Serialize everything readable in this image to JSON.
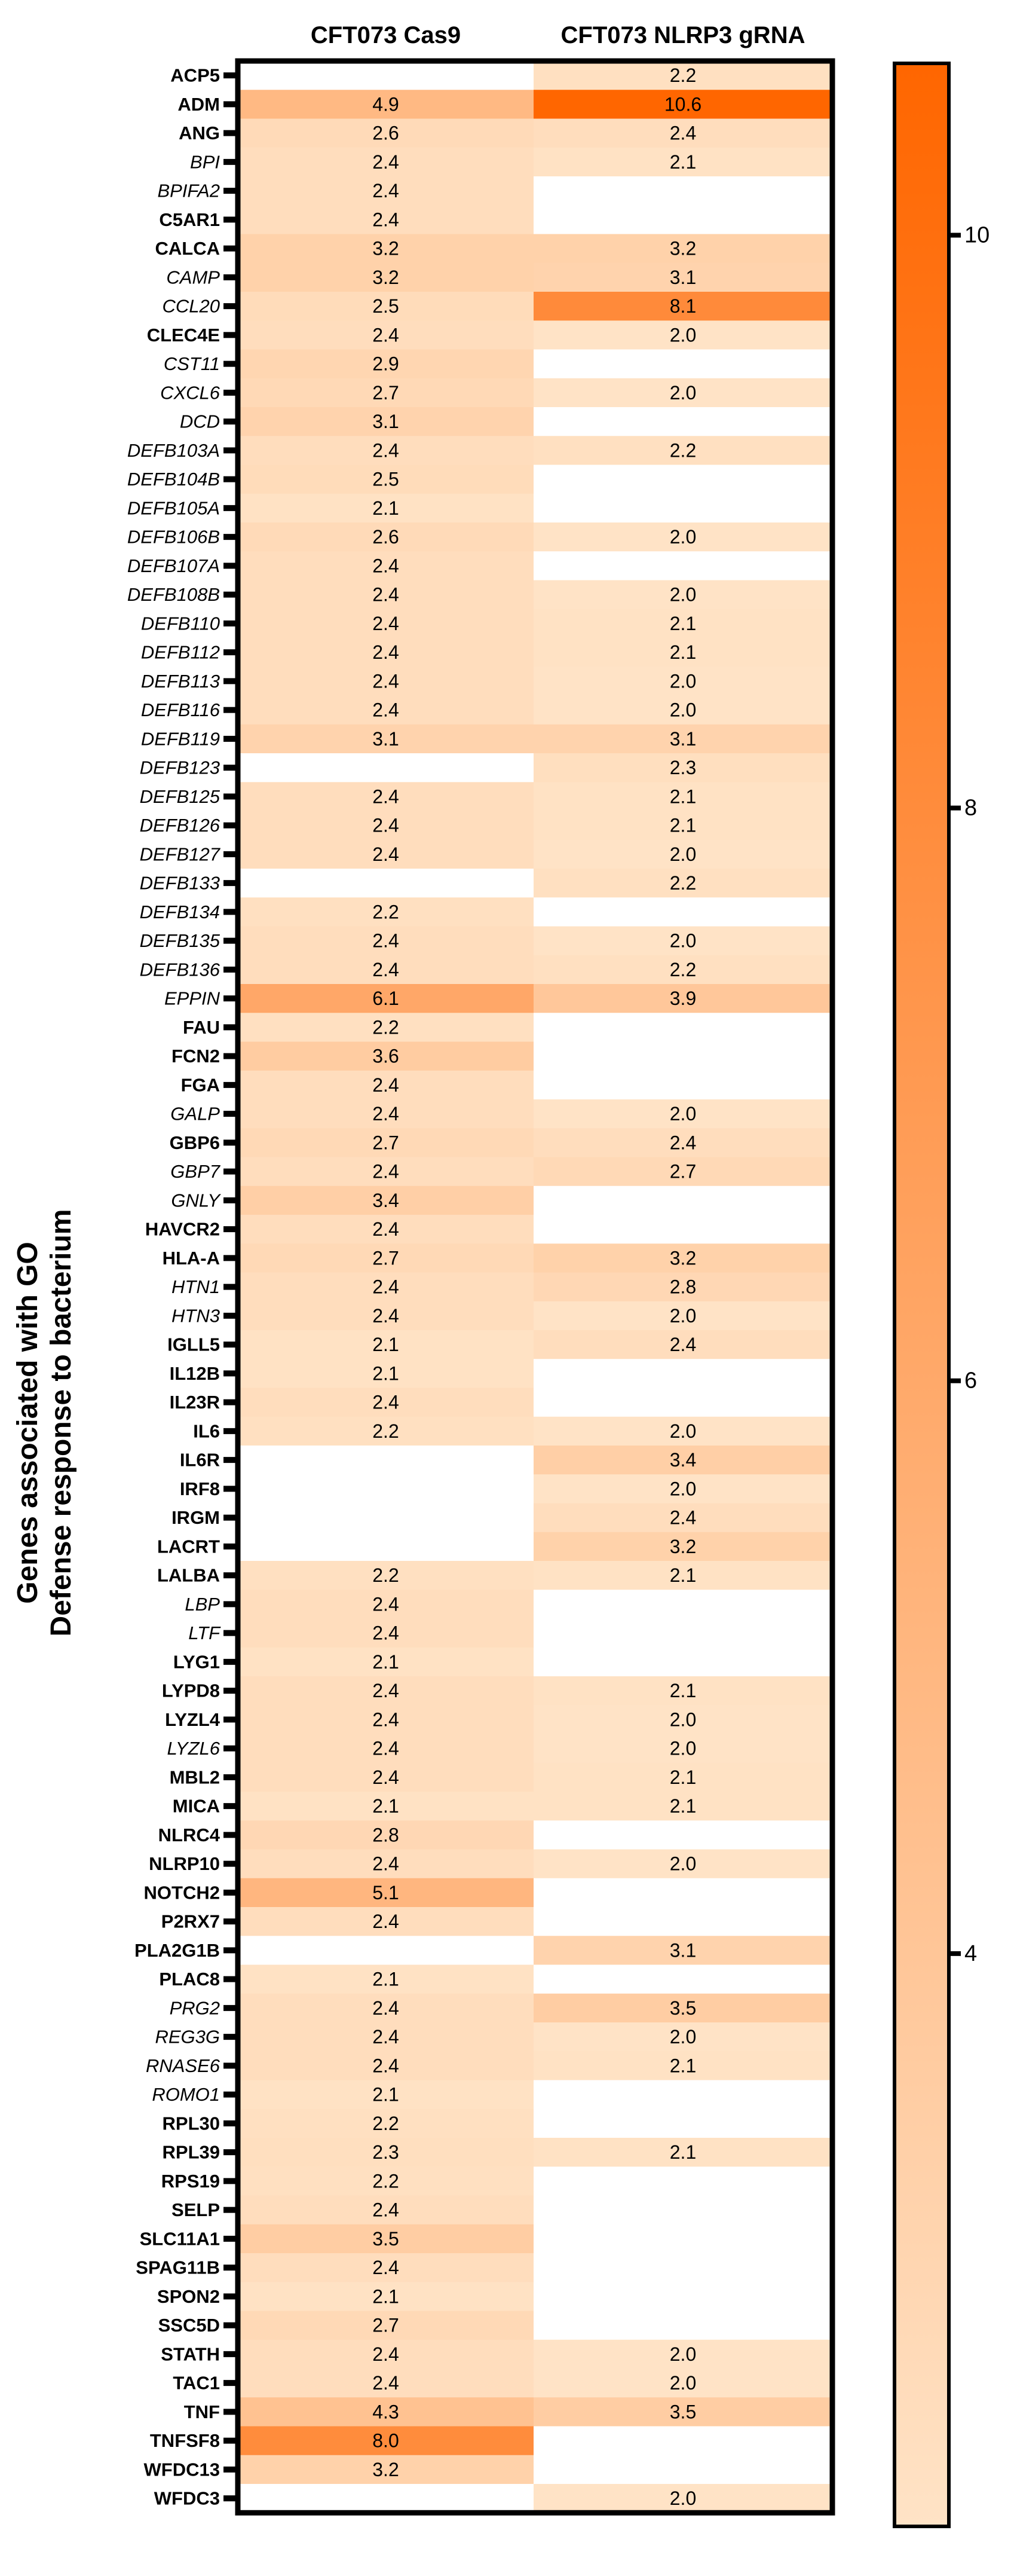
{
  "chart_data": {
    "type": "heatmap",
    "title": "",
    "columns": [
      "CFT073 Cas9",
      "CFT073 NLRP3 gRNA"
    ],
    "ylabel_lines": [
      "Genes associated with GO",
      "Defense response to bacterium"
    ],
    "rows": [
      {
        "gene": "ACP5",
        "italic": false,
        "values": [
          null,
          2.2
        ]
      },
      {
        "gene": "ADM",
        "italic": false,
        "values": [
          4.9,
          10.6
        ]
      },
      {
        "gene": "ANG",
        "italic": false,
        "values": [
          2.6,
          2.4
        ]
      },
      {
        "gene": "BPI",
        "italic": true,
        "values": [
          2.4,
          2.1
        ]
      },
      {
        "gene": "BPIFA2",
        "italic": true,
        "values": [
          2.4,
          null
        ]
      },
      {
        "gene": "C5AR1",
        "italic": false,
        "values": [
          2.4,
          null
        ]
      },
      {
        "gene": "CALCA",
        "italic": false,
        "values": [
          3.2,
          3.2
        ]
      },
      {
        "gene": "CAMP",
        "italic": true,
        "values": [
          3.2,
          3.1
        ]
      },
      {
        "gene": "CCL20",
        "italic": true,
        "values": [
          2.5,
          8.1
        ]
      },
      {
        "gene": "CLEC4E",
        "italic": false,
        "values": [
          2.4,
          2.0
        ]
      },
      {
        "gene": "CST11",
        "italic": true,
        "values": [
          2.9,
          null
        ]
      },
      {
        "gene": "CXCL6",
        "italic": true,
        "values": [
          2.7,
          2.0
        ]
      },
      {
        "gene": "DCD",
        "italic": true,
        "values": [
          3.1,
          null
        ]
      },
      {
        "gene": "DEFB103A",
        "italic": true,
        "values": [
          2.4,
          2.2
        ]
      },
      {
        "gene": "DEFB104B",
        "italic": true,
        "values": [
          2.5,
          null
        ]
      },
      {
        "gene": "DEFB105A",
        "italic": true,
        "values": [
          2.1,
          null
        ]
      },
      {
        "gene": "DEFB106B",
        "italic": true,
        "values": [
          2.6,
          2.0
        ]
      },
      {
        "gene": "DEFB107A",
        "italic": true,
        "values": [
          2.4,
          null
        ]
      },
      {
        "gene": "DEFB108B",
        "italic": true,
        "values": [
          2.4,
          2.0
        ]
      },
      {
        "gene": "DEFB110",
        "italic": true,
        "values": [
          2.4,
          2.1
        ]
      },
      {
        "gene": "DEFB112",
        "italic": true,
        "values": [
          2.4,
          2.1
        ]
      },
      {
        "gene": "DEFB113",
        "italic": true,
        "values": [
          2.4,
          2.0
        ]
      },
      {
        "gene": "DEFB116",
        "italic": true,
        "values": [
          2.4,
          2.0
        ]
      },
      {
        "gene": "DEFB119",
        "italic": true,
        "values": [
          3.1,
          3.1
        ]
      },
      {
        "gene": "DEFB123",
        "italic": true,
        "values": [
          null,
          2.3
        ]
      },
      {
        "gene": "DEFB125",
        "italic": true,
        "values": [
          2.4,
          2.1
        ]
      },
      {
        "gene": "DEFB126",
        "italic": true,
        "values": [
          2.4,
          2.1
        ]
      },
      {
        "gene": "DEFB127",
        "italic": true,
        "values": [
          2.4,
          2.0
        ]
      },
      {
        "gene": "DEFB133",
        "italic": true,
        "values": [
          null,
          2.2
        ]
      },
      {
        "gene": "DEFB134",
        "italic": true,
        "values": [
          2.2,
          null
        ]
      },
      {
        "gene": "DEFB135",
        "italic": true,
        "values": [
          2.4,
          2.0
        ]
      },
      {
        "gene": "DEFB136",
        "italic": true,
        "values": [
          2.4,
          2.2
        ]
      },
      {
        "gene": "EPPIN",
        "italic": true,
        "values": [
          6.1,
          3.9
        ]
      },
      {
        "gene": "FAU",
        "italic": false,
        "values": [
          2.2,
          null
        ]
      },
      {
        "gene": "FCN2",
        "italic": false,
        "values": [
          3.6,
          null
        ]
      },
      {
        "gene": "FGA",
        "italic": false,
        "values": [
          2.4,
          null
        ]
      },
      {
        "gene": "GALP",
        "italic": true,
        "values": [
          2.4,
          2.0
        ]
      },
      {
        "gene": "GBP6",
        "italic": false,
        "values": [
          2.7,
          2.4
        ]
      },
      {
        "gene": "GBP7",
        "italic": true,
        "values": [
          2.4,
          2.7
        ]
      },
      {
        "gene": "GNLY",
        "italic": true,
        "values": [
          3.4,
          null
        ]
      },
      {
        "gene": "HAVCR2",
        "italic": false,
        "values": [
          2.4,
          null
        ]
      },
      {
        "gene": "HLA-A",
        "italic": false,
        "values": [
          2.7,
          3.2
        ]
      },
      {
        "gene": "HTN1",
        "italic": true,
        "values": [
          2.4,
          2.8
        ]
      },
      {
        "gene": "HTN3",
        "italic": true,
        "values": [
          2.4,
          2.0
        ]
      },
      {
        "gene": "IGLL5",
        "italic": false,
        "values": [
          2.1,
          2.4
        ]
      },
      {
        "gene": "IL12B",
        "italic": false,
        "values": [
          2.1,
          null
        ]
      },
      {
        "gene": "IL23R",
        "italic": false,
        "values": [
          2.4,
          null
        ]
      },
      {
        "gene": "IL6",
        "italic": false,
        "values": [
          2.2,
          2.0
        ]
      },
      {
        "gene": "IL6R",
        "italic": false,
        "values": [
          null,
          3.4
        ]
      },
      {
        "gene": "IRF8",
        "italic": false,
        "values": [
          null,
          2.0
        ]
      },
      {
        "gene": "IRGM",
        "italic": false,
        "values": [
          null,
          2.4
        ]
      },
      {
        "gene": "LACRT",
        "italic": false,
        "values": [
          null,
          3.2
        ]
      },
      {
        "gene": "LALBA",
        "italic": false,
        "values": [
          2.2,
          2.1
        ]
      },
      {
        "gene": "LBP",
        "italic": true,
        "values": [
          2.4,
          null
        ]
      },
      {
        "gene": "LTF",
        "italic": true,
        "values": [
          2.4,
          null
        ]
      },
      {
        "gene": "LYG1",
        "italic": false,
        "values": [
          2.1,
          null
        ]
      },
      {
        "gene": "LYPD8",
        "italic": false,
        "values": [
          2.4,
          2.1
        ]
      },
      {
        "gene": "LYZL4",
        "italic": false,
        "values": [
          2.4,
          2.0
        ]
      },
      {
        "gene": "LYZL6",
        "italic": true,
        "values": [
          2.4,
          2.0
        ]
      },
      {
        "gene": "MBL2",
        "italic": false,
        "values": [
          2.4,
          2.1
        ]
      },
      {
        "gene": "MICA",
        "italic": false,
        "values": [
          2.1,
          2.1
        ]
      },
      {
        "gene": "NLRC4",
        "italic": false,
        "values": [
          2.8,
          null
        ]
      },
      {
        "gene": "NLRP10",
        "italic": false,
        "values": [
          2.4,
          2.0
        ]
      },
      {
        "gene": "NOTCH2",
        "italic": false,
        "values": [
          5.1,
          null
        ]
      },
      {
        "gene": "P2RX7",
        "italic": false,
        "values": [
          2.4,
          null
        ]
      },
      {
        "gene": "PLA2G1B",
        "italic": false,
        "values": [
          null,
          3.1
        ]
      },
      {
        "gene": "PLAC8",
        "italic": false,
        "values": [
          2.1,
          null
        ]
      },
      {
        "gene": "PRG2",
        "italic": true,
        "values": [
          2.4,
          3.5
        ]
      },
      {
        "gene": "REG3G",
        "italic": true,
        "values": [
          2.4,
          2.0
        ]
      },
      {
        "gene": "RNASE6",
        "italic": true,
        "values": [
          2.4,
          2.1
        ]
      },
      {
        "gene": "ROMO1",
        "italic": true,
        "values": [
          2.1,
          null
        ]
      },
      {
        "gene": "RPL30",
        "italic": false,
        "values": [
          2.2,
          null
        ]
      },
      {
        "gene": "RPL39",
        "italic": false,
        "values": [
          2.3,
          2.1
        ]
      },
      {
        "gene": "RPS19",
        "italic": false,
        "values": [
          2.2,
          null
        ]
      },
      {
        "gene": "SELP",
        "italic": false,
        "values": [
          2.4,
          null
        ]
      },
      {
        "gene": "SLC11A1",
        "italic": false,
        "values": [
          3.5,
          null
        ]
      },
      {
        "gene": "SPAG11B",
        "italic": false,
        "values": [
          2.4,
          null
        ]
      },
      {
        "gene": "SPON2",
        "italic": false,
        "values": [
          2.1,
          null
        ]
      },
      {
        "gene": "SSC5D",
        "italic": false,
        "values": [
          2.7,
          null
        ]
      },
      {
        "gene": "STATH",
        "italic": false,
        "values": [
          2.4,
          2.0
        ]
      },
      {
        "gene": "TAC1",
        "italic": false,
        "values": [
          2.4,
          2.0
        ]
      },
      {
        "gene": "TNF",
        "italic": false,
        "values": [
          4.3,
          3.5
        ]
      },
      {
        "gene": "TNFSF8",
        "italic": false,
        "values": [
          8.0,
          null
        ]
      },
      {
        "gene": "WFDC13",
        "italic": false,
        "values": [
          3.2,
          null
        ]
      },
      {
        "gene": "WFDC3",
        "italic": false,
        "values": [
          null,
          2.0
        ]
      }
    ],
    "colorbar": {
      "min": 2.0,
      "max": 10.6,
      "ticks": [
        4,
        6,
        8,
        10
      ],
      "color_low": "#ffe3c6",
      "color_high": "#ff6600"
    },
    "colors": {
      "empty_cell": "#ffffff",
      "border": "#000000",
      "text": "#000000"
    }
  }
}
